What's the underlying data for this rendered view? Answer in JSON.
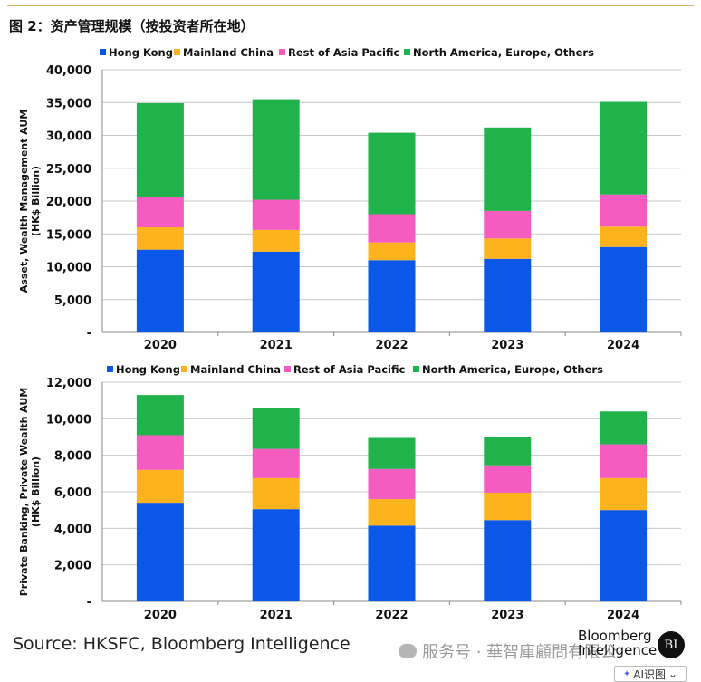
{
  "figure_title": "图 2：资产管理规模（按投资者所在地）",
  "source": "Source: HKSFC, Bloomberg Intelligence",
  "watermark": {
    "icon": "wechat-icon",
    "text": "服务号 · 華智庫顧問有限公"
  },
  "brand": {
    "line1": "Bloomberg",
    "line2": "Intelligence",
    "badge": "BI"
  },
  "ai_button": {
    "label": "AI识图",
    "icon": "sparkle-icon",
    "arrow": "⌄"
  },
  "colors": {
    "Hong Kong": "#0b57e8",
    "Mainland China": "#fcb31d",
    "Rest of Asia Pacific": "#f45cc0",
    "North America, Europe, Others": "#21b34b",
    "gridline": "#c8c8c8"
  },
  "chart_data": [
    {
      "type": "bar",
      "stacked": true,
      "title": "",
      "ylabel_line1": "Asset, Wealth Management AUM",
      "ylabel_line2": "(HK$ Billion)",
      "xlabel": "",
      "categories": [
        "2020",
        "2021",
        "2022",
        "2023",
        "2024"
      ],
      "ylim": [
        0,
        40000
      ],
      "yticks": [
        "-",
        "5,000",
        "10,000",
        "15,000",
        "20,000",
        "25,000",
        "30,000",
        "35,000",
        "40,000"
      ],
      "grid": true,
      "legend_position": "top",
      "series": [
        {
          "name": "Hong Kong",
          "values": [
            12600,
            12300,
            11000,
            11200,
            13000
          ]
        },
        {
          "name": "Mainland China",
          "values": [
            3400,
            3300,
            2700,
            3100,
            3100
          ]
        },
        {
          "name": "Rest of Asia Pacific",
          "values": [
            4600,
            4600,
            4300,
            4200,
            4900
          ]
        },
        {
          "name": "North America, Europe, Others",
          "values": [
            14300,
            15300,
            12400,
            12700,
            14100
          ]
        }
      ]
    },
    {
      "type": "bar",
      "stacked": true,
      "title": "",
      "ylabel_line1": "Private Banking, Private Wealth AUM",
      "ylabel_line2": "(HK$ Billion)",
      "xlabel": "",
      "categories": [
        "2020",
        "2021",
        "2022",
        "2023",
        "2024"
      ],
      "ylim": [
        0,
        12000
      ],
      "yticks": [
        "-",
        "2,000",
        "4,000",
        "6,000",
        "8,000",
        "10,000",
        "12,000"
      ],
      "grid": true,
      "legend_position": "top",
      "series": [
        {
          "name": "Hong Kong",
          "values": [
            5400,
            5050,
            4150,
            4450,
            5000
          ]
        },
        {
          "name": "Mainland China",
          "values": [
            1800,
            1700,
            1450,
            1500,
            1750
          ]
        },
        {
          "name": "Rest of Asia Pacific",
          "values": [
            1900,
            1600,
            1650,
            1500,
            1850
          ]
        },
        {
          "name": "North America, Europe, Others",
          "values": [
            2200,
            2250,
            1700,
            1550,
            1800
          ]
        }
      ]
    }
  ]
}
